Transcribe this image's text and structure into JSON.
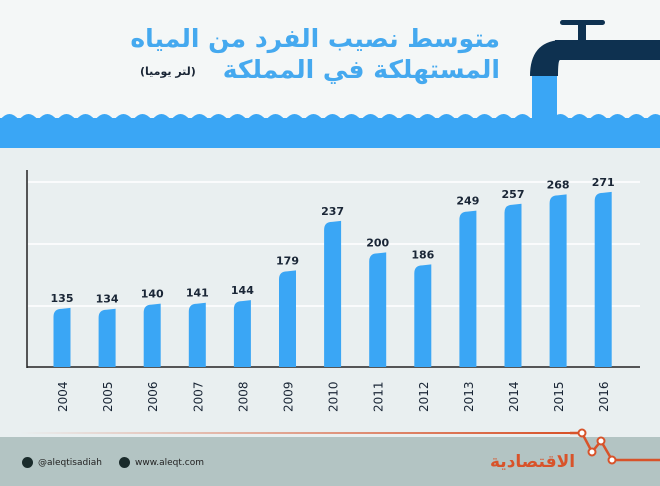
{
  "header": {
    "title_line1": "متوسط نصيب الفرد من المياه",
    "title_line2": "المستهلكة في المملكة",
    "unit": "(لتر يوميا)"
  },
  "colors": {
    "bar": "#3aa6f5",
    "title": "#45a9ef",
    "accent": "#d8532a",
    "faucet": "#0e3150"
  },
  "chart_data": {
    "type": "bar",
    "title": "متوسط نصيب الفرد من المياه المستهلكة في المملكة (لتر يوميا)",
    "categories": [
      "2004",
      "2005",
      "2006",
      "2007",
      "2008",
      "2009",
      "2010",
      "2011",
      "2012",
      "2013",
      "2014",
      "2015",
      "2016"
    ],
    "values": [
      135,
      134,
      140,
      141,
      144,
      179,
      237,
      200,
      186,
      249,
      257,
      268,
      271
    ],
    "xlabel": "",
    "ylabel": "",
    "grid": true,
    "data_labels": true
  },
  "footer": {
    "twitter": "@aleqtisadiah",
    "website": "www.aleqt.com",
    "logo": "الاقتصادية",
    "icons": [
      "twitter-icon",
      "web-icon"
    ]
  }
}
